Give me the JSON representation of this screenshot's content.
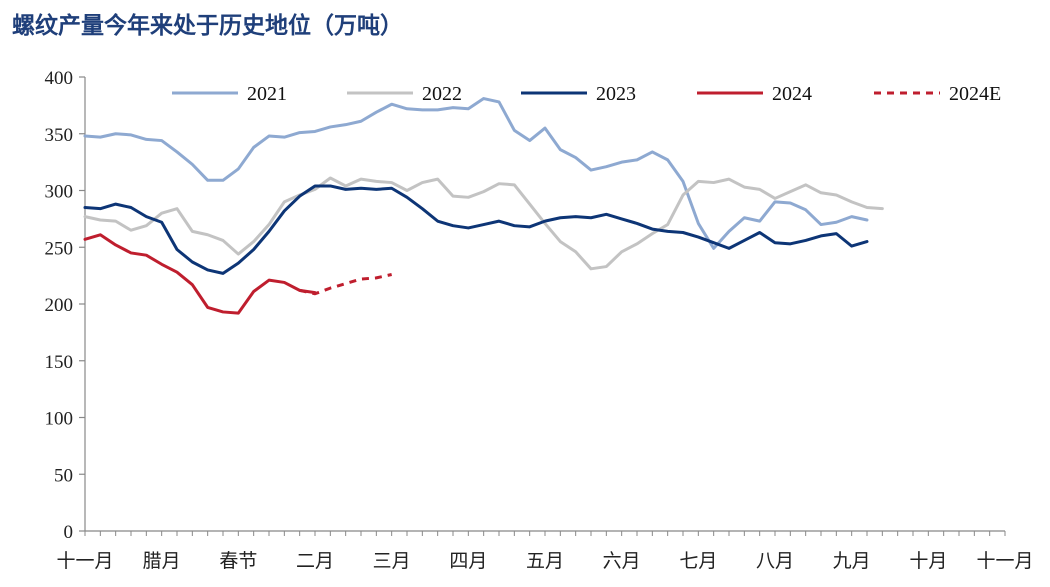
{
  "title": "螺纹产量今年来处于历史地位（万吨）",
  "chart_data": {
    "type": "line",
    "title": "螺纹产量今年来处于历史地位（万吨）",
    "xlabel": "",
    "ylabel": "",
    "ylim": [
      0,
      400
    ],
    "y_ticks": [
      0,
      50,
      100,
      150,
      200,
      250,
      300,
      350,
      400
    ],
    "x_count": 61,
    "x_tick_labels": [
      {
        "index": 0,
        "label": "十一月"
      },
      {
        "index": 5,
        "label": "腊月"
      },
      {
        "index": 10,
        "label": "春节"
      },
      {
        "index": 15,
        "label": "二月"
      },
      {
        "index": 20,
        "label": "三月"
      },
      {
        "index": 25,
        "label": "四月"
      },
      {
        "index": 30,
        "label": "五月"
      },
      {
        "index": 35,
        "label": "六月"
      },
      {
        "index": 40,
        "label": "七月"
      },
      {
        "index": 45,
        "label": "八月"
      },
      {
        "index": 50,
        "label": "九月"
      },
      {
        "index": 55,
        "label": "十月"
      },
      {
        "index": 60,
        "label": "十一月"
      }
    ],
    "grid": false,
    "legend": "top",
    "series": [
      {
        "name": "2021",
        "color": "#8ea9d1",
        "dashed": false,
        "start": 0,
        "values": [
          348,
          347,
          350,
          349,
          345,
          344,
          334,
          323,
          309,
          309,
          319,
          338,
          348,
          347,
          351,
          352,
          356,
          358,
          361,
          369,
          376,
          372,
          371,
          371,
          373,
          372,
          381,
          378,
          353,
          344,
          355,
          336,
          329,
          318,
          321,
          325,
          327,
          334,
          327,
          308,
          271,
          249,
          264,
          276,
          273,
          290,
          289,
          283,
          270,
          272,
          277,
          274
        ]
      },
      {
        "name": "2022",
        "color": "#c3c3c3",
        "dashed": false,
        "start": 0,
        "values": [
          277,
          274,
          273,
          265,
          269,
          280,
          284,
          264,
          261,
          256,
          244,
          255,
          270,
          290,
          296,
          301,
          311,
          304,
          310,
          308,
          307,
          300,
          307,
          310,
          295,
          294,
          299,
          306,
          305,
          288,
          271,
          255,
          246,
          231,
          233,
          246,
          253,
          262,
          270,
          296,
          308,
          307,
          310,
          303,
          301,
          293,
          299,
          305,
          298,
          296,
          290,
          285,
          284
        ]
      },
      {
        "name": "2023",
        "color": "#0d3576",
        "dashed": false,
        "start": 0,
        "values": [
          285,
          284,
          288,
          285,
          277,
          272,
          248,
          237,
          230,
          227,
          236,
          248,
          264,
          282,
          295,
          304,
          304,
          301,
          302,
          301,
          302,
          294,
          284,
          273,
          269,
          267,
          270,
          273,
          269,
          268,
          273,
          276,
          277,
          276,
          279,
          275,
          271,
          266,
          264,
          263,
          259,
          254,
          249,
          256,
          263,
          254,
          253,
          256,
          260,
          262,
          251,
          255
        ]
      },
      {
        "name": "2024",
        "color": "#bf1e2e",
        "dashed": false,
        "start": 0,
        "values": [
          257,
          261,
          252,
          245,
          243,
          235,
          228,
          217,
          197,
          193,
          192,
          211,
          221,
          219,
          212,
          210
        ]
      },
      {
        "name": "2024E",
        "color": "#bf1e2e",
        "dashed": true,
        "start": 14,
        "values": [
          212,
          209,
          214,
          218,
          222,
          223,
          226
        ]
      }
    ]
  }
}
